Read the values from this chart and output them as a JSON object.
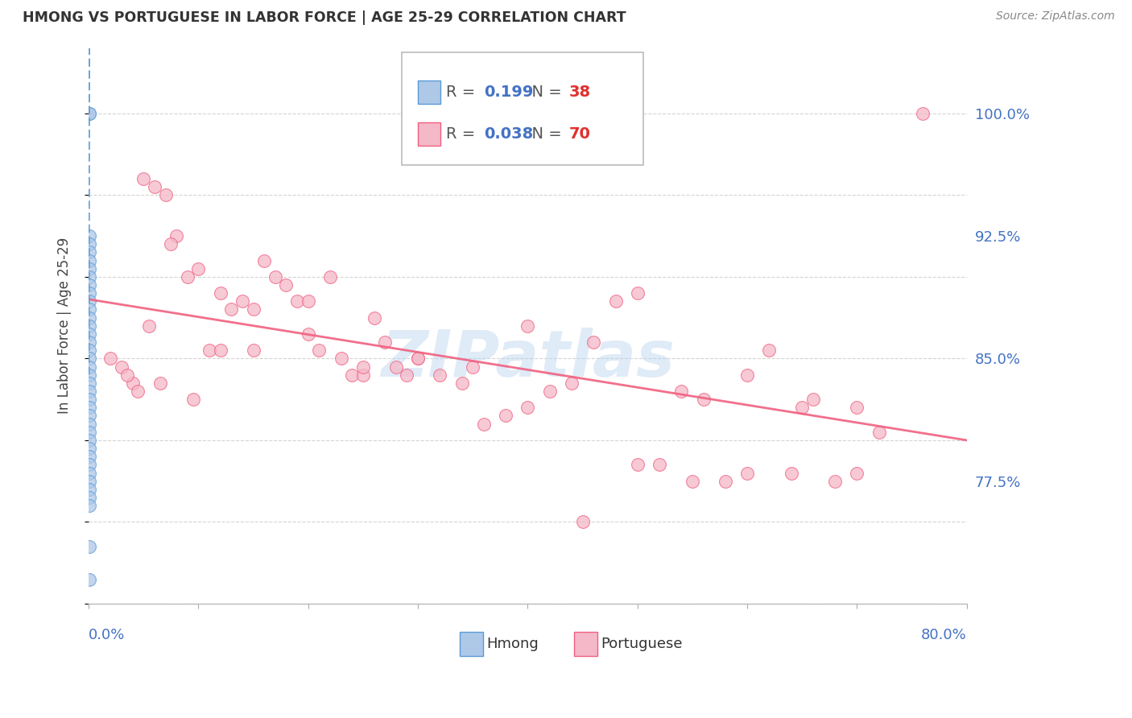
{
  "title": "HMONG VS PORTUGUESE IN LABOR FORCE | AGE 25-29 CORRELATION CHART",
  "source": "Source: ZipAtlas.com",
  "ylabel": "In Labor Force | Age 25-29",
  "yticks": [
    100.0,
    92.5,
    85.0,
    77.5
  ],
  "xmin": 0.0,
  "xmax": 80.0,
  "ymin": 70.0,
  "ymax": 104.0,
  "watermark": "ZIPatlas",
  "legend_hmong_R": "0.199",
  "legend_hmong_N": "38",
  "legend_portuguese_R": "0.038",
  "legend_portuguese_N": "70",
  "hmong_fill_color": "#aec8e8",
  "portuguese_fill_color": "#f4b8c8",
  "hmong_edge_color": "#5b9bd5",
  "portuguese_edge_color": "#f06080",
  "hmong_line_color": "#5b9bd5",
  "portuguese_line_color": "#f06080",
  "axis_label_color": "#4472c4",
  "title_color": "#333333",
  "source_color": "#888888",
  "grid_color": "#d0d0d0",
  "hmong_x": [
    0.05,
    0.05,
    0.05,
    0.05,
    0.05,
    0.05,
    0.05,
    0.05,
    0.05,
    0.05,
    0.05,
    0.05,
    0.05,
    0.05,
    0.05,
    0.05,
    0.05,
    0.05,
    0.05,
    0.05,
    0.05,
    0.05,
    0.05,
    0.05,
    0.05,
    0.05,
    0.05,
    0.05,
    0.05,
    0.05,
    0.05,
    0.05,
    0.05,
    0.05,
    0.05,
    0.05,
    0.05,
    0.05
  ],
  "hmong_y": [
    100.0,
    100.0,
    92.5,
    92.0,
    91.5,
    91.0,
    90.5,
    90.0,
    89.5,
    89.0,
    88.5,
    88.0,
    87.5,
    87.0,
    86.5,
    86.0,
    85.5,
    85.0,
    84.5,
    84.0,
    83.5,
    83.0,
    82.5,
    82.0,
    81.5,
    81.0,
    80.5,
    80.0,
    79.5,
    79.0,
    78.5,
    78.0,
    77.5,
    77.0,
    76.5,
    76.0,
    73.5,
    71.5
  ],
  "portuguese_x": [
    2.0,
    3.0,
    4.0,
    5.0,
    6.0,
    7.0,
    8.0,
    9.0,
    10.0,
    11.0,
    12.0,
    13.0,
    14.0,
    15.0,
    16.0,
    17.0,
    18.0,
    19.0,
    20.0,
    21.0,
    22.0,
    23.0,
    24.0,
    25.0,
    26.0,
    27.0,
    28.0,
    29.0,
    30.0,
    32.0,
    34.0,
    36.0,
    38.0,
    40.0,
    42.0,
    44.0,
    46.0,
    48.0,
    50.0,
    52.0,
    54.0,
    56.0,
    58.0,
    60.0,
    62.0,
    64.0,
    66.0,
    68.0,
    70.0,
    72.0,
    3.5,
    4.5,
    5.5,
    6.5,
    7.5,
    9.5,
    12.0,
    15.0,
    20.0,
    25.0,
    30.0,
    35.0,
    40.0,
    45.0,
    50.0,
    55.0,
    60.0,
    65.0,
    70.0,
    76.0
  ],
  "portuguese_y": [
    85.0,
    84.5,
    83.5,
    96.0,
    95.5,
    95.0,
    92.5,
    90.0,
    90.5,
    85.5,
    89.0,
    88.0,
    88.5,
    88.0,
    91.0,
    90.0,
    89.5,
    88.5,
    86.5,
    85.5,
    90.0,
    85.0,
    84.0,
    84.0,
    87.5,
    86.0,
    84.5,
    84.0,
    85.0,
    84.0,
    83.5,
    81.0,
    81.5,
    87.0,
    83.0,
    83.5,
    86.0,
    88.5,
    89.0,
    78.5,
    83.0,
    82.5,
    77.5,
    78.0,
    85.5,
    78.0,
    82.5,
    77.5,
    82.0,
    80.5,
    84.0,
    83.0,
    87.0,
    83.5,
    92.0,
    82.5,
    85.5,
    85.5,
    88.5,
    84.5,
    85.0,
    84.5,
    82.0,
    75.0,
    78.5,
    77.5,
    84.0,
    82.0,
    78.0,
    100.0
  ]
}
